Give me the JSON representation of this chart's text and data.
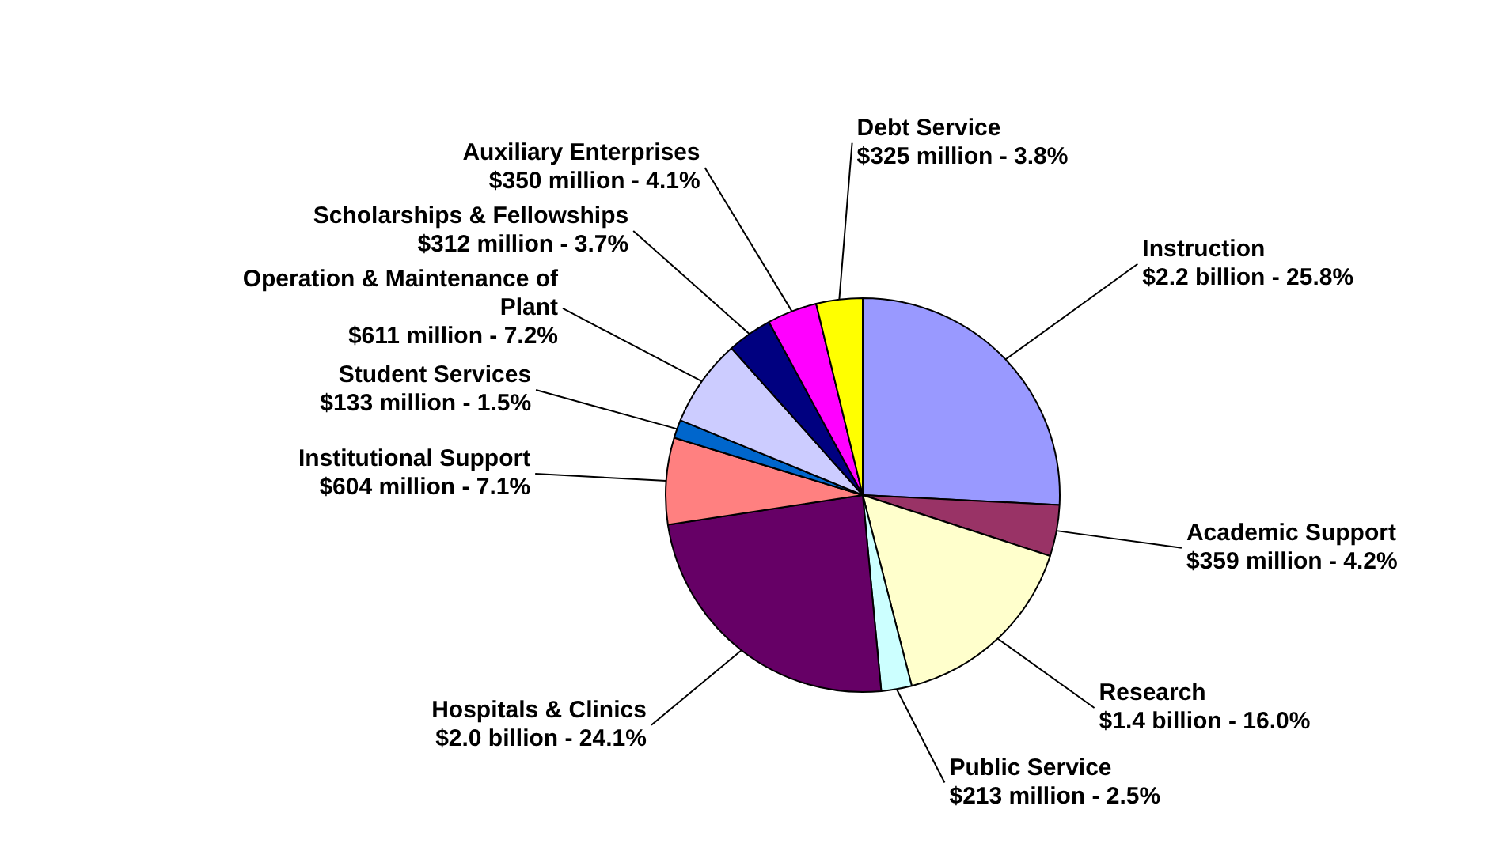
{
  "chart_data": {
    "type": "pie",
    "categories": [
      "Instruction",
      "Academic Support",
      "Research",
      "Public Service",
      "Hospitals & Clinics",
      "Institutional Support",
      "Student Services",
      "Operation & Maintenance of Plant",
      "Scholarships & Fellowships",
      "Auxiliary Enterprises",
      "Debt Service"
    ],
    "values": [
      25.8,
      4.2,
      16.0,
      2.5,
      24.1,
      7.1,
      1.5,
      7.2,
      3.7,
      4.1,
      3.8
    ],
    "colors": [
      "#9999ff",
      "#993366",
      "#ffffcc",
      "#ccffff",
      "#660066",
      "#ff8080",
      "#0066cc",
      "#ccccff",
      "#000080",
      "#ff00ff",
      "#ffff00"
    ],
    "value_labels": [
      "25.8%",
      "4.2%",
      "16.0%",
      "2.5%",
      "24.1%",
      "7.1%",
      "1.5%",
      "7.2%",
      "3.7%",
      "4.1%",
      "3.8%"
    ],
    "annotations": [
      "$2.2 billion -",
      "$359 million -",
      "$1.4 billion -",
      "$213 million -",
      "$2.0 billion -",
      "$604 million -",
      "$133 million -",
      "$611 million -",
      "$312 million -",
      "$350 million -",
      "$325 million -"
    ]
  }
}
